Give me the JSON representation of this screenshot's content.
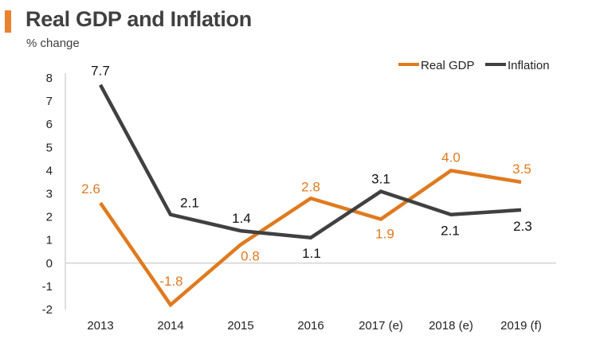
{
  "header": {
    "title": "Real GDP and Inflation",
    "subtitle": "% change"
  },
  "chart_data": {
    "type": "line",
    "title": "Real GDP and Inflation",
    "ylabel": "% change",
    "xlabel": "",
    "ylim": [
      -2,
      8
    ],
    "yticks": [
      "-2",
      "-1",
      "0",
      "1",
      "2",
      "3",
      "4",
      "5",
      "6",
      "7",
      "8"
    ],
    "categories": [
      "2013",
      "2014",
      "2015",
      "2016",
      "2017 (e)",
      "2018 (e)",
      "2019 (f)"
    ],
    "legend_position": "top-right",
    "series": [
      {
        "name": "Real GDP",
        "color": "#e07a1f",
        "values": [
          2.6,
          -1.8,
          0.8,
          2.8,
          1.9,
          4.0,
          3.5
        ],
        "labels": [
          "2.6",
          "-1.8",
          "0.8",
          "2.8",
          "1.9",
          "4.0",
          "3.5"
        ]
      },
      {
        "name": "Inflation",
        "color": "#404040",
        "values": [
          7.7,
          2.1,
          1.4,
          1.1,
          3.1,
          2.1,
          2.3
        ],
        "labels": [
          "7.7",
          "2.1",
          "1.4",
          "1.1",
          "3.1",
          "2.1",
          "2.3"
        ]
      }
    ]
  }
}
